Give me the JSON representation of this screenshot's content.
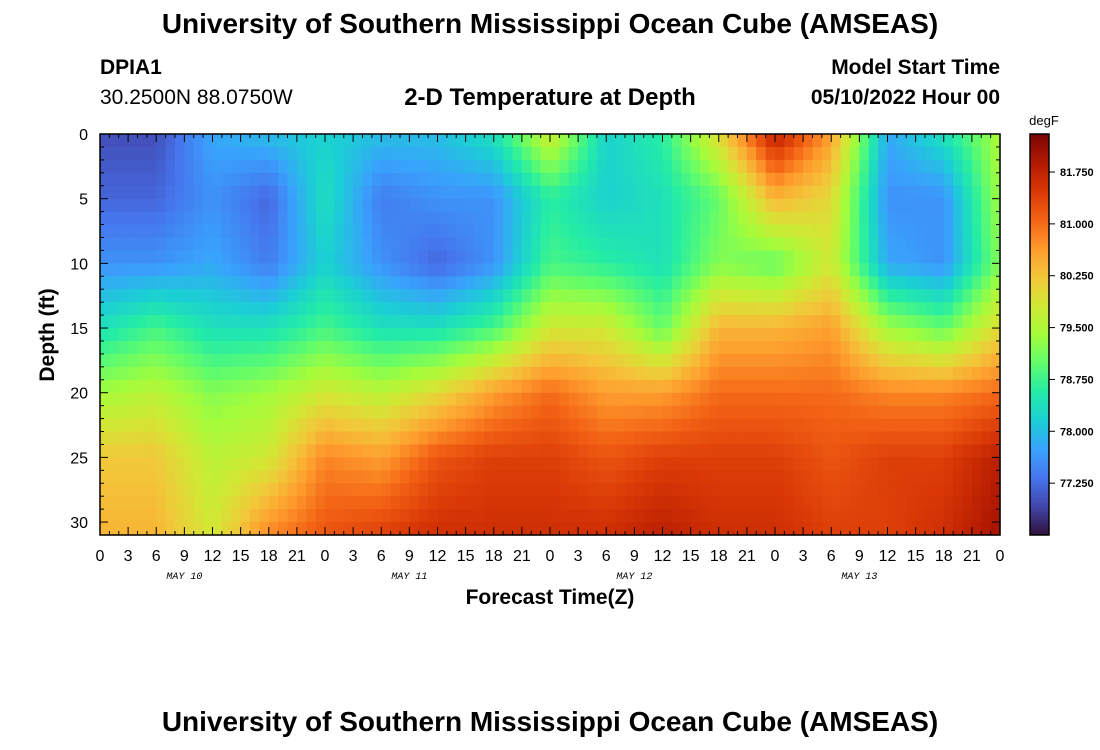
{
  "header": {
    "title": "University of Southern Mississippi Ocean Cube (AMSEAS)",
    "title_repeat": "University of Southern Mississippi Ocean Cube (AMSEAS)",
    "station": "DPIA1",
    "coords": "30.2500N  88.0750W",
    "subtitle": "2-D Temperature at Depth",
    "model_start_label": "Model Start Time",
    "model_start_value": "05/10/2022 Hour 00"
  },
  "chart_data": {
    "type": "heatmap",
    "title": "2-D Temperature at Depth",
    "xlabel": "Forecast Time(Z)",
    "ylabel": "Depth (ft)",
    "x_ticks": [
      "0",
      "3",
      "6",
      "9",
      "12",
      "15",
      "18",
      "21",
      "0",
      "3",
      "6",
      "9",
      "12",
      "15",
      "18",
      "21",
      "0",
      "3",
      "6",
      "9",
      "12",
      "15",
      "18",
      "21",
      "0",
      "3",
      "6",
      "9",
      "12",
      "15",
      "18",
      "21",
      "0"
    ],
    "date_labels": [
      "MAY 10",
      "MAY 11",
      "MAY 12",
      "MAY 13"
    ],
    "y_ticks": [
      "0",
      "5",
      "10",
      "15",
      "20",
      "25",
      "30"
    ],
    "xlim": [
      0,
      96
    ],
    "ylim": [
      0,
      31
    ],
    "x_unit": "hours since 05/10/2022 00Z",
    "colorbar": {
      "label": "degF",
      "min": 76.5,
      "max": 82.3,
      "ticks": [
        "81.750",
        "81.000",
        "80.250",
        "79.500",
        "78.750",
        "78.000",
        "77.250"
      ],
      "colors": [
        "#30123b",
        "#4145ab",
        "#4675ed",
        "#39a2fc",
        "#1bcfd4",
        "#24eca6",
        "#61fc6c",
        "#a4fc3b",
        "#d1e834",
        "#f3c63a",
        "#fe9b2d",
        "#f36315",
        "#d93806",
        "#b11901",
        "#7a0403"
      ]
    },
    "z_units": "degF",
    "hours": [
      0,
      6,
      12,
      18,
      24,
      30,
      36,
      42,
      48,
      54,
      60,
      66,
      72,
      78,
      84,
      90,
      96
    ],
    "depths": [
      0,
      5,
      10,
      15,
      20,
      25,
      31
    ],
    "values": [
      [
        77.0,
        77.0,
        77.8,
        78.0,
        78.2,
        78.0,
        78.0,
        78.4,
        79.8,
        78.2,
        78.6,
        80.0,
        81.8,
        80.6,
        77.8,
        78.4,
        79.5
      ],
      [
        77.2,
        77.2,
        77.6,
        77.2,
        78.4,
        77.4,
        77.6,
        77.6,
        78.6,
        78.2,
        78.4,
        79.0,
        80.4,
        80.0,
        77.6,
        77.6,
        79.4
      ],
      [
        77.6,
        77.6,
        77.8,
        77.4,
        78.2,
        77.6,
        77.2,
        77.6,
        78.8,
        78.6,
        78.4,
        79.2,
        79.0,
        79.8,
        77.8,
        77.6,
        79.2
      ],
      [
        78.4,
        78.8,
        78.4,
        78.4,
        78.8,
        78.4,
        78.4,
        78.8,
        79.8,
        79.8,
        79.0,
        80.4,
        80.4,
        80.6,
        79.4,
        79.0,
        80.0
      ],
      [
        79.4,
        79.6,
        79.2,
        79.4,
        79.8,
        79.6,
        80.0,
        80.6,
        81.0,
        80.6,
        80.6,
        81.0,
        81.0,
        81.0,
        80.8,
        80.8,
        81.0
      ],
      [
        80.2,
        80.2,
        79.6,
        79.8,
        80.8,
        80.6,
        81.2,
        81.4,
        81.4,
        81.2,
        81.4,
        81.4,
        81.4,
        81.2,
        81.4,
        81.4,
        81.8
      ],
      [
        80.4,
        80.4,
        79.8,
        80.8,
        81.2,
        81.4,
        81.6,
        81.6,
        81.6,
        81.6,
        81.8,
        81.6,
        81.6,
        81.4,
        81.4,
        81.6,
        82.0
      ]
    ],
    "grid": false
  }
}
